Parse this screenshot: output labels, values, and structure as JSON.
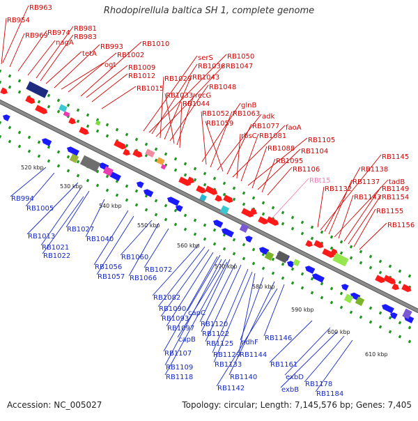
{
  "title": "Rhodopirellula baltica SH 1, complete genome",
  "footer": {
    "accession": "Accession: NC_005027",
    "summary": "Topology: circular; Length: 7,145,576 bp; Genes: 7,405"
  },
  "colors": {
    "forward_label": "#d40000",
    "reverse_label": "#1428c8",
    "rna_label": "#f07ab4",
    "forward_gene": "#ff1a1a",
    "reverse_gene": "#1a1aff",
    "backbone": "#8c8c8c",
    "tick_track": "#1e961e"
  },
  "kbp_ticks": [
    "520 kbp",
    "530 kbp",
    "540 kbp",
    "550 kbp",
    "560 kbp",
    "570 kbp",
    "580 kbp",
    "590 kbp",
    "600 kbp",
    "610 kbp"
  ],
  "forward_genes": [
    "RB963",
    "RB954",
    "RB969",
    "RB974",
    "nagA",
    "RB981",
    "RB983",
    "tetA",
    "RB993",
    "ogt",
    "RB1002",
    "RB1010",
    "RB1009",
    "RB1012",
    "RB1015",
    "serS",
    "RB1050",
    "RB1036",
    "RB1047",
    "RB1029",
    "RB1043",
    "RB1048",
    "RB1033",
    "recG",
    "RB1044",
    "glnB",
    "RB1052",
    "RB1063",
    "adk",
    "RB1059",
    "RB1077",
    "faoA",
    "rbsC",
    "RB1081",
    "RB1105",
    "RB1088",
    "RB1104",
    "RB1095",
    "RB1106",
    "RB1145",
    "RB1138",
    "RB1132",
    "RB1137",
    "tadB",
    "RB1143",
    "RB1149",
    "RB1154",
    "RB1155",
    "RB1156"
  ],
  "rna_genes": [
    "RBt15"
  ],
  "reverse_genes": [
    "RB994",
    "RB1005",
    "RB1013",
    "RB1027",
    "RB1021",
    "RB1040",
    "RB1022",
    "RB1060",
    "RB1056",
    "RB1072",
    "RB1057",
    "RB1066",
    "RB1082",
    "RB1090",
    "capC",
    "RB1093",
    "RB1097",
    "RB1120",
    "capB",
    "RB1122",
    "RB1125",
    "ndhF",
    "RB1146",
    "RB1107",
    "RB1129",
    "RB1144",
    "RB1109",
    "RB1133",
    "RB1161",
    "RB1118",
    "RB1140",
    "exbD",
    "RB1142",
    "exbB",
    "RB1178",
    "RB1184"
  ]
}
